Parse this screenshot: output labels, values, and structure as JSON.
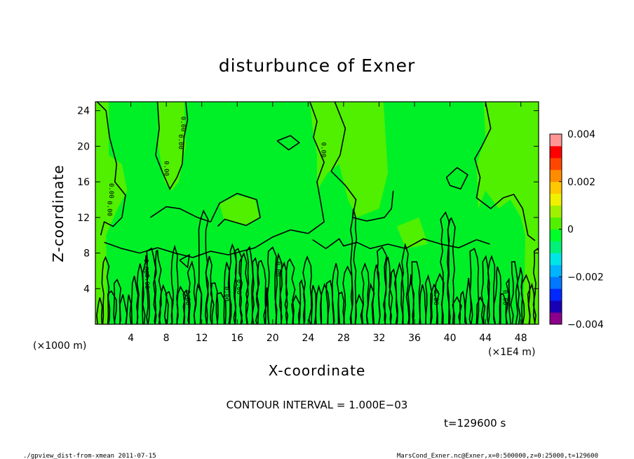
{
  "chart_data": {
    "type": "heatmap",
    "title": "disturbunce of Exner",
    "xlabel": "X-coordinate",
    "ylabel": "Z-coordinate",
    "x_unit_note": "(×1E4 m)",
    "y_unit_note": "(×1000 m)",
    "xlim": [
      0,
      50
    ],
    "ylim": [
      0,
      25
    ],
    "x_ticks": [
      4,
      8,
      12,
      16,
      20,
      24,
      28,
      32,
      36,
      40,
      44,
      48
    ],
    "y_ticks": [
      4,
      8,
      12,
      16,
      20,
      24
    ],
    "colorbar": {
      "min": -0.004,
      "max": 0.004,
      "tick_labels": [
        "0.004",
        "0.002",
        "0",
        "−0.002",
        "−0.004"
      ],
      "tick_values": [
        0.004,
        0.002,
        0,
        -0.002,
        -0.004
      ],
      "colors": [
        "#8b008b",
        "#1a00b4",
        "#0028ff",
        "#0078ff",
        "#00b4ff",
        "#00e6e6",
        "#00f07a",
        "#00ff28",
        "#50f000",
        "#a0f000",
        "#f0f000",
        "#ffc800",
        "#ff8c00",
        "#ff4600",
        "#ff0000",
        "#ff9696"
      ]
    },
    "contour_interval_text": "CONTOUR INTERVAL = 1.000E−03",
    "contour_labels": [
      "0.00",
      "0.00",
      "0.00",
      "0.00",
      "0.00",
      "0.00",
      "0.00",
      "0.00",
      "0.00",
      "0.00",
      "0.00",
      "0.00",
      "0.00",
      "0.00"
    ]
  },
  "time_label": "t=129600 s",
  "footer_left": "./gpview_dist-from-xmean  2011-07-15",
  "footer_right": "MarsCond_Exner.nc@Exner,x=0:500000,z=0:25000,t=129600",
  "colors": {
    "background_field": "#00f028",
    "light_field": "#50f000",
    "contour": "#000000"
  }
}
